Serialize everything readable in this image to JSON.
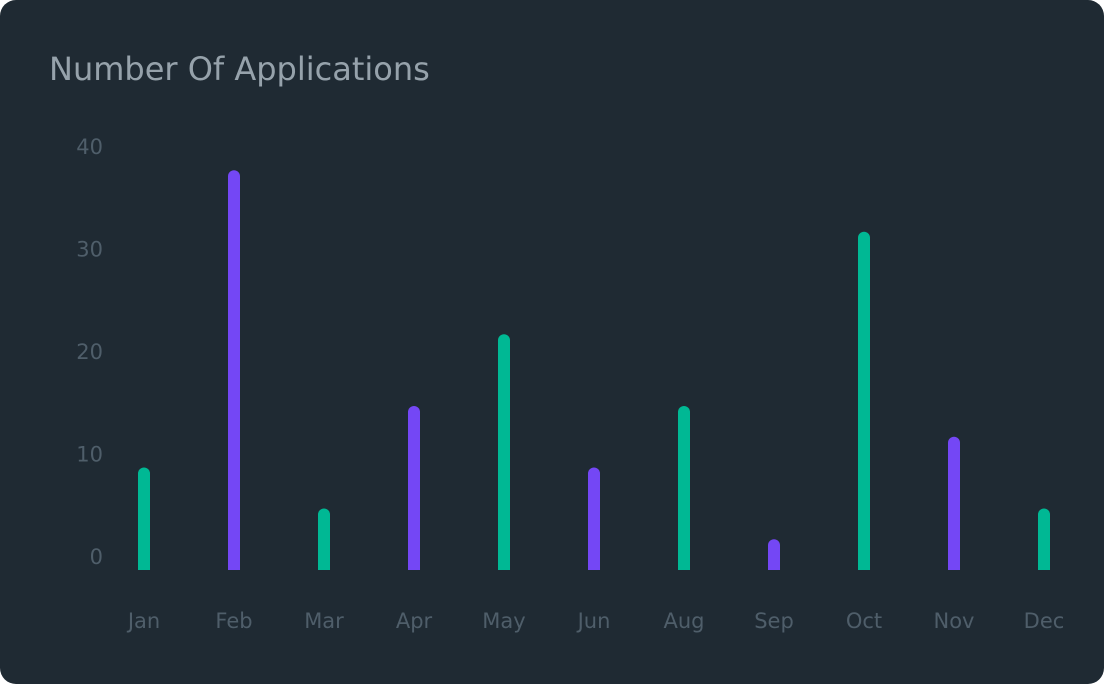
{
  "card": {
    "title": "Number Of Applications"
  },
  "chart_data": {
    "type": "bar",
    "title": "Number Of Applications",
    "xlabel": "",
    "ylabel": "",
    "categories": [
      "Jan",
      "Feb",
      "Mar",
      "Apr",
      "May",
      "Jun",
      "Aug",
      "Sep",
      "Oct",
      "Nov",
      "Dec"
    ],
    "values": [
      10,
      39,
      6,
      16,
      23,
      10,
      16,
      3,
      33,
      13,
      6
    ],
    "bar_colors": [
      "#00b894",
      "#7447f5",
      "#00b894",
      "#7447f5",
      "#00b894",
      "#7447f5",
      "#00b894",
      "#7447f5",
      "#00b894",
      "#7447f5",
      "#00b894"
    ],
    "ylim": [
      0,
      40
    ],
    "yticks": [
      0,
      10,
      20,
      30,
      40
    ],
    "grid": false,
    "legend": "none"
  },
  "colors": {
    "card_background": "#1f2a33",
    "title": "#96a2ab",
    "tick_labels": "#4f5e6a",
    "accent_green": "#00b894",
    "accent_purple": "#7447f5"
  }
}
